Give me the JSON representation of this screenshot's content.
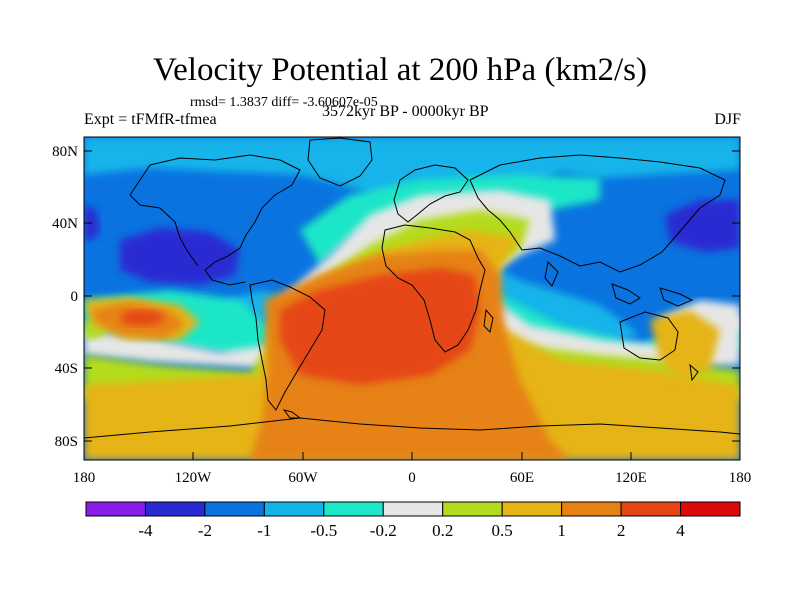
{
  "title": "Velocity Potential at 200 hPa (km2/s)",
  "stats": "rmsd= 1.3837 diff= -3.60607e-05",
  "experiment": "Expt = tFMfR-tfmea",
  "period": "3572kyr BP - 0000kyr BP",
  "season": "DJF",
  "lat_ticks": [
    "80N",
    "40N",
    "0",
    "40S",
    "80S"
  ],
  "lon_ticks": [
    "180",
    "120W",
    "60W",
    "0",
    "60E",
    "120E",
    "180"
  ],
  "colorbar": {
    "labels": [
      "-4",
      "-2",
      "-1",
      "-0.5",
      "-0.2",
      "0.2",
      "0.5",
      "1",
      "2",
      "4"
    ],
    "colors": [
      "#8a1ee6",
      "#2a2ad2",
      "#0a73e0",
      "#12b4ea",
      "#1ee6c8",
      "#e6e6e6",
      "#b4dc1e",
      "#e6b414",
      "#e68214",
      "#e64614",
      "#dc0a0a"
    ]
  }
}
